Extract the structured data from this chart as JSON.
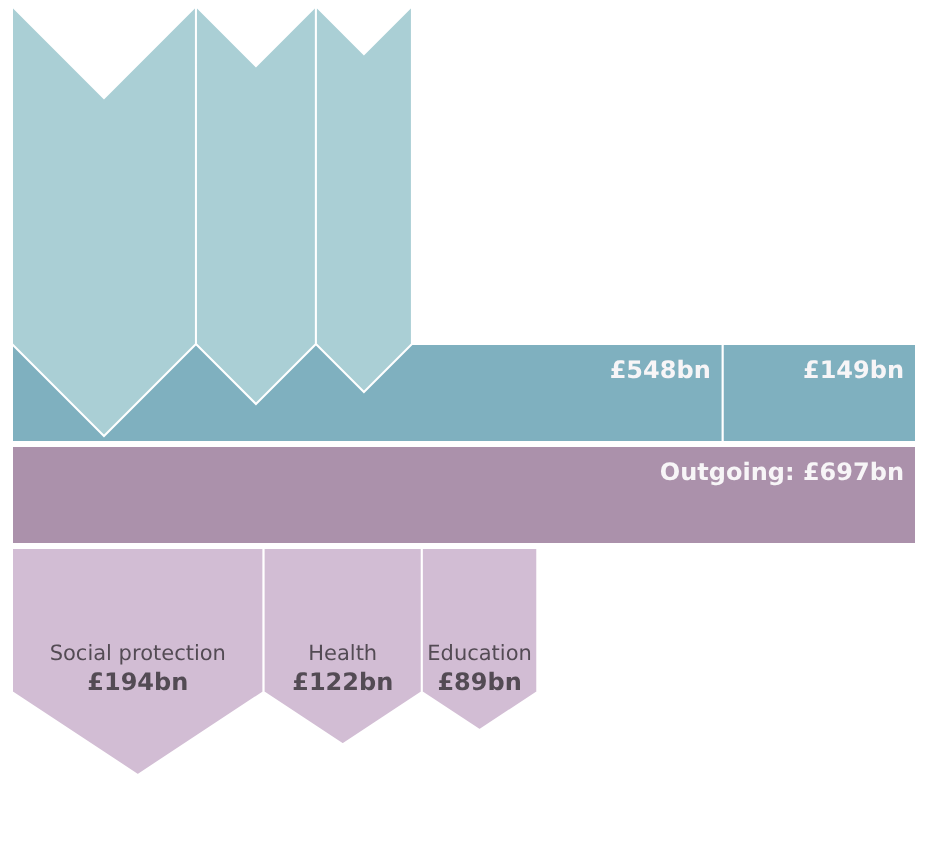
{
  "chart_data": {
    "type": "other",
    "categories": [
      null,
      null,
      null,
      "Social protection",
      "Health",
      "Education"
    ],
    "values": [
      548,
      149,
      697,
      194,
      122,
      89
    ],
    "value_labels": [
      "£548bn",
      "£149bn",
      "Outgoing: £697bn",
      "£194bn",
      "£122bn",
      "£89bn"
    ],
    "colors": [
      "#7fb0bf",
      "#7fb0bf",
      "#ab91ab",
      "#d2bdd4",
      "#d2bdd4",
      "#d2bdd4"
    ]
  }
}
